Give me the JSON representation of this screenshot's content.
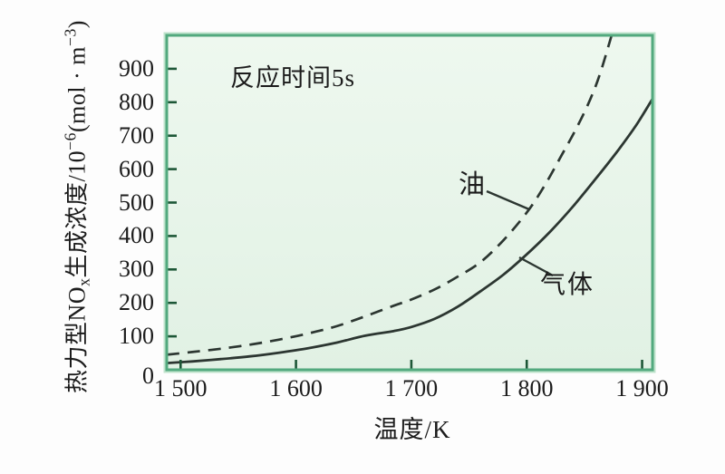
{
  "chart_data": {
    "type": "line",
    "title": "",
    "annotation": "反应时间5s",
    "xlabel": "温度/K",
    "ylabel": {
      "full": "热力型NOx生成浓度/10−6(mol · m−3)",
      "parts": {
        "p1": "热力型NO",
        "sub1": "x",
        "p2": "生成浓度/10",
        "sup1": "−6",
        "p3": "(mol · m",
        "sup2": "−3",
        "p4": ")"
      }
    },
    "xlim": [
      1488,
      1909
    ],
    "ylim": [
      0,
      1000
    ],
    "grid": false,
    "legend_position": "inline-labels",
    "x_ticks": {
      "values": [
        1500,
        1600,
        1700,
        1800,
        1900
      ],
      "labels": [
        "1 500",
        "1 600",
        "1 700",
        "1 800",
        "1 900"
      ]
    },
    "y_ticks": {
      "values": [
        0,
        100,
        200,
        300,
        400,
        500,
        600,
        700,
        800,
        900
      ],
      "labels": [
        "0",
        "100",
        "200",
        "300",
        "400",
        "500",
        "600",
        "700",
        "800",
        "900"
      ]
    },
    "series": [
      {
        "name": "油",
        "style": "dashed",
        "points": [
          [
            1488,
            45
          ],
          [
            1510,
            53
          ],
          [
            1535,
            63
          ],
          [
            1560,
            75
          ],
          [
            1585,
            90
          ],
          [
            1610,
            108
          ],
          [
            1635,
            130
          ],
          [
            1660,
            160
          ],
          [
            1685,
            192
          ],
          [
            1700,
            210
          ],
          [
            1720,
            240
          ],
          [
            1740,
            278
          ],
          [
            1760,
            322
          ],
          [
            1780,
            388
          ],
          [
            1800,
            470
          ],
          [
            1815,
            548
          ],
          [
            1830,
            640
          ],
          [
            1843,
            722
          ],
          [
            1855,
            808
          ],
          [
            1864,
            890
          ],
          [
            1874,
            1005
          ]
        ]
      },
      {
        "name": "气体",
        "style": "solid",
        "points": [
          [
            1488,
            20
          ],
          [
            1510,
            25
          ],
          [
            1535,
            32
          ],
          [
            1560,
            40
          ],
          [
            1585,
            51
          ],
          [
            1610,
            64
          ],
          [
            1635,
            81
          ],
          [
            1660,
            102
          ],
          [
            1685,
            116
          ],
          [
            1700,
            128
          ],
          [
            1720,
            152
          ],
          [
            1740,
            188
          ],
          [
            1760,
            235
          ],
          [
            1780,
            285
          ],
          [
            1800,
            345
          ],
          [
            1820,
            412
          ],
          [
            1840,
            488
          ],
          [
            1860,
            572
          ],
          [
            1880,
            660
          ],
          [
            1895,
            732
          ],
          [
            1909,
            810
          ]
        ]
      }
    ],
    "colors": {
      "frame": "#52a97e",
      "frame_halo": "#bfe3cc",
      "plot_bg_top": "#eef8ef",
      "plot_bg_bottom": "#e1f1e4",
      "curve": "#2c3631",
      "tick": "#1d5737",
      "text": "#1c1c1c",
      "page_bg": "#fdfdfd"
    }
  }
}
